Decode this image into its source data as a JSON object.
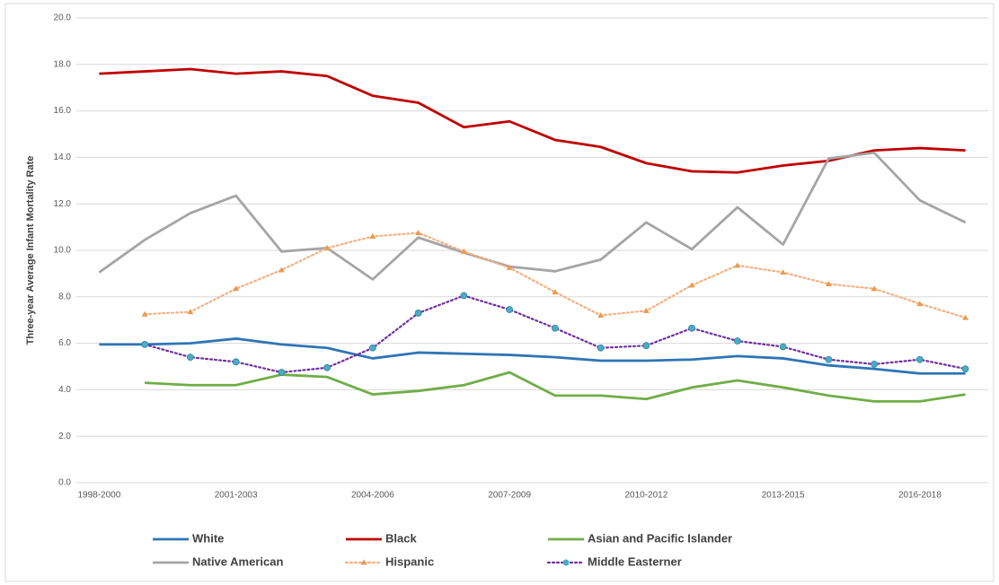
{
  "chart_data": {
    "type": "line",
    "y_label": "Three-year Average Infant Mortality Rate",
    "categories": [
      "1998-2000",
      null,
      null,
      "2001-2003",
      null,
      null,
      "2004-2006",
      null,
      null,
      "2007-2009",
      null,
      null,
      "2010-2012",
      null,
      null,
      "2013-2015",
      null,
      null,
      "2016-2018",
      null
    ],
    "ylim": [
      0,
      20
    ],
    "yticks": [
      {
        "value": 0,
        "label": "0.0"
      },
      {
        "value": 2,
        "label": "2.0"
      },
      {
        "value": 4,
        "label": "4.0"
      },
      {
        "value": 6,
        "label": "6.0"
      },
      {
        "value": 8,
        "label": "8.0"
      },
      {
        "value": 10,
        "label": "10.0"
      },
      {
        "value": 12,
        "label": "12.0"
      },
      {
        "value": 14,
        "label": "14.0"
      },
      {
        "value": 16,
        "label": "16.0"
      },
      {
        "value": 18,
        "label": "18.0"
      },
      {
        "value": 20,
        "label": "20.0"
      }
    ],
    "grid": true,
    "legend": "bottom",
    "series": [
      {
        "name": "White",
        "color": "#2e75b6",
        "style": "solid",
        "values": [
          5.95,
          5.95,
          6.0,
          6.2,
          5.95,
          5.8,
          5.35,
          5.6,
          5.55,
          5.5,
          5.4,
          5.25,
          5.25,
          5.3,
          5.45,
          5.35,
          5.05,
          4.9,
          4.7,
          4.7
        ]
      },
      {
        "name": "Black",
        "color": "#c00000",
        "style": "solid",
        "values": [
          17.6,
          17.7,
          17.8,
          17.6,
          17.7,
          17.5,
          16.65,
          16.35,
          15.3,
          15.55,
          14.75,
          14.45,
          13.75,
          13.4,
          13.35,
          13.65,
          13.85,
          14.3,
          14.4,
          14.3
        ]
      },
      {
        "name": "Asian and Pacific Islander",
        "color": "#70ad47",
        "style": "solid",
        "values": [
          null,
          4.3,
          4.2,
          4.2,
          4.65,
          4.55,
          3.8,
          3.95,
          4.2,
          4.75,
          3.75,
          3.75,
          3.6,
          4.1,
          4.4,
          4.1,
          3.75,
          3.5,
          3.5,
          3.8
        ]
      },
      {
        "name": "Native American",
        "color": "#a5a5a5",
        "style": "solid",
        "values": [
          9.05,
          10.45,
          11.6,
          12.35,
          9.95,
          10.1,
          8.75,
          10.55,
          9.9,
          9.3,
          9.1,
          9.6,
          11.2,
          10.05,
          11.85,
          10.25,
          13.95,
          14.2,
          12.15,
          11.2
        ]
      },
      {
        "name": "Hispanic",
        "color": "#f4b183",
        "style": "dotted",
        "marker": "triangle",
        "marker_color": "#ed9a4f",
        "values": [
          null,
          7.25,
          7.35,
          8.35,
          9.15,
          10.1,
          10.6,
          10.75,
          9.95,
          9.25,
          8.2,
          7.2,
          7.4,
          8.5,
          9.35,
          9.05,
          8.55,
          8.35,
          7.7,
          7.1
        ]
      },
      {
        "name": "Middle Easterner",
        "color": "#7030a0",
        "style": "dotted",
        "marker": "circle",
        "marker_color": "#4bacc6",
        "values": [
          null,
          5.95,
          5.4,
          5.2,
          4.75,
          4.95,
          5.8,
          7.3,
          8.05,
          7.45,
          6.65,
          5.8,
          5.9,
          6.65,
          6.1,
          5.85,
          5.3,
          5.1,
          5.3,
          4.9
        ]
      }
    ]
  }
}
